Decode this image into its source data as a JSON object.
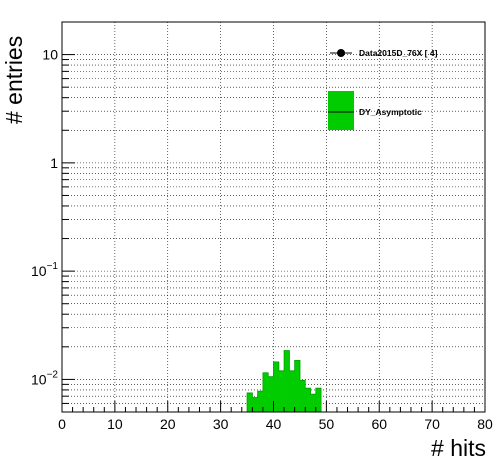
{
  "chart_data": {
    "type": "bar",
    "title": "",
    "xlabel": "# hits",
    "ylabel": "# entries",
    "xlim": [
      0,
      80
    ],
    "ylim": [
      0.005,
      20
    ],
    "y_scale": "log",
    "grid": true,
    "x_ticks": [
      0,
      10,
      20,
      30,
      40,
      50,
      60,
      70,
      80
    ],
    "x_tick_labels": [
      "0",
      "10",
      "20",
      "30",
      "40",
      "50",
      "60",
      "70",
      "80"
    ],
    "y_major_ticks": [
      0.01,
      0.1,
      1,
      10
    ],
    "y_tick_labels": [
      {
        "base": "10",
        "exp": "−2"
      },
      {
        "base": "10",
        "exp": "−1"
      },
      {
        "base": "1",
        "exp": ""
      },
      {
        "base": "10",
        "exp": ""
      }
    ],
    "legend_position": "top-right",
    "legend": [
      {
        "label": "Data2015D_76X [        4]",
        "marker": "circle-line",
        "color": "#000000"
      },
      {
        "label": "DY_Asymptotic",
        "marker": "filled-box",
        "color": "#00cc00"
      }
    ],
    "series": [
      {
        "name": "DY_Asymptotic",
        "color": "#00cc00",
        "bin_width": 1,
        "bin_low_edges": [
          35,
          36,
          37,
          38,
          39,
          40,
          41,
          42,
          43,
          44,
          45,
          46,
          47,
          48
        ],
        "values": [
          0.0075,
          0.0068,
          0.0078,
          0.0115,
          0.0106,
          0.0145,
          0.012,
          0.0185,
          0.012,
          0.015,
          0.0098,
          0.0083,
          0.0073,
          0.0083
        ]
      }
    ]
  }
}
